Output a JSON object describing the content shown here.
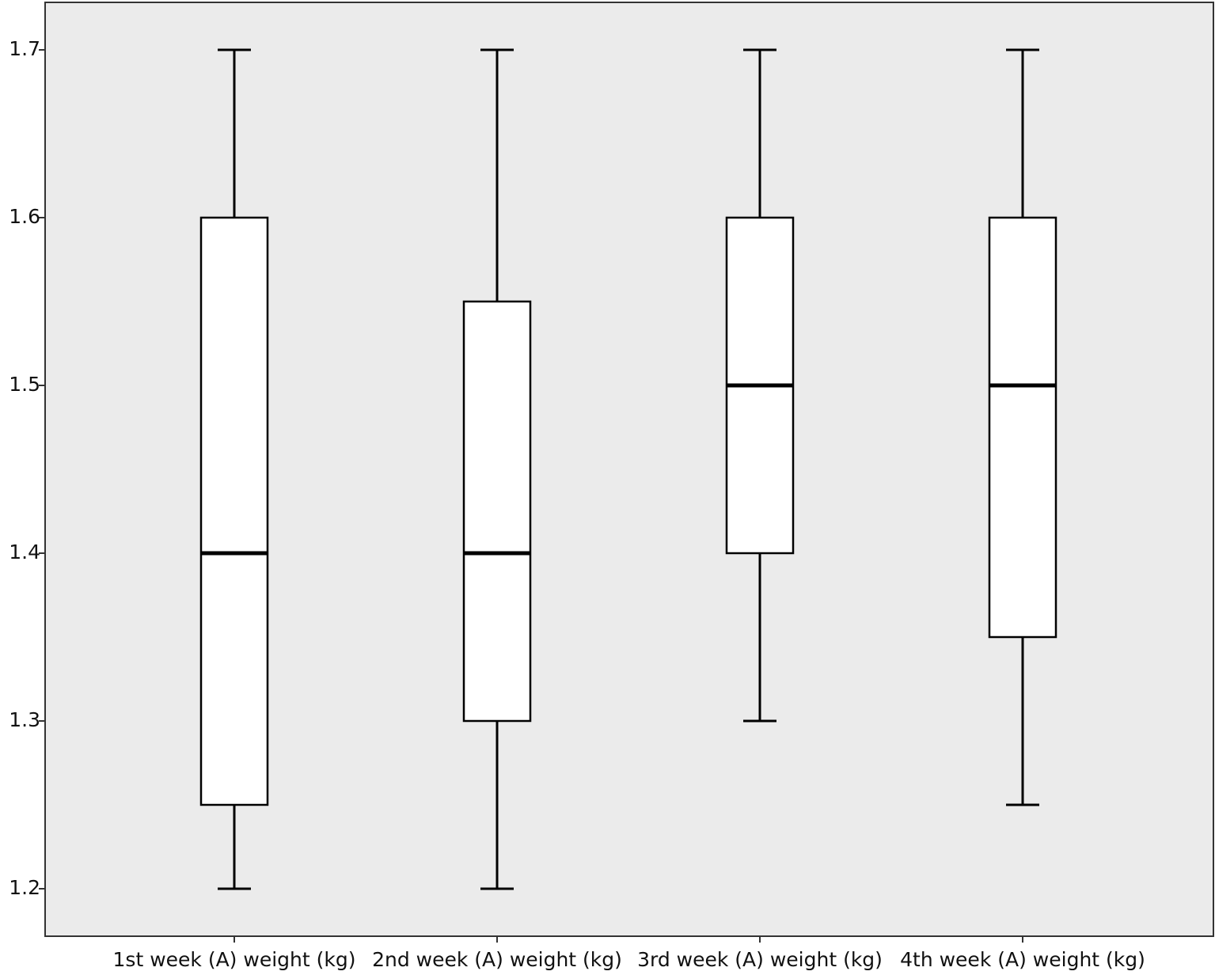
{
  "chart_data": {
    "type": "box",
    "categories": [
      "1st week (A) weight (kg)",
      "2nd week (A) weight (kg)",
      "3rd week (A) weight (kg)",
      "4th week (A) weight (kg)"
    ],
    "min": [
      1.2,
      1.2,
      1.3,
      1.25
    ],
    "q1": [
      1.25,
      1.3,
      1.4,
      1.35
    ],
    "median": [
      1.4,
      1.4,
      1.5,
      1.5
    ],
    "q3": [
      1.6,
      1.55,
      1.6,
      1.6
    ],
    "max": [
      1.7,
      1.7,
      1.7,
      1.7
    ],
    "color": "#ffffff",
    "ylim": [
      1.1717,
      1.7283
    ],
    "yticks": [
      1.2,
      1.3,
      1.4,
      1.5,
      1.6,
      1.7
    ],
    "grid": false
  }
}
